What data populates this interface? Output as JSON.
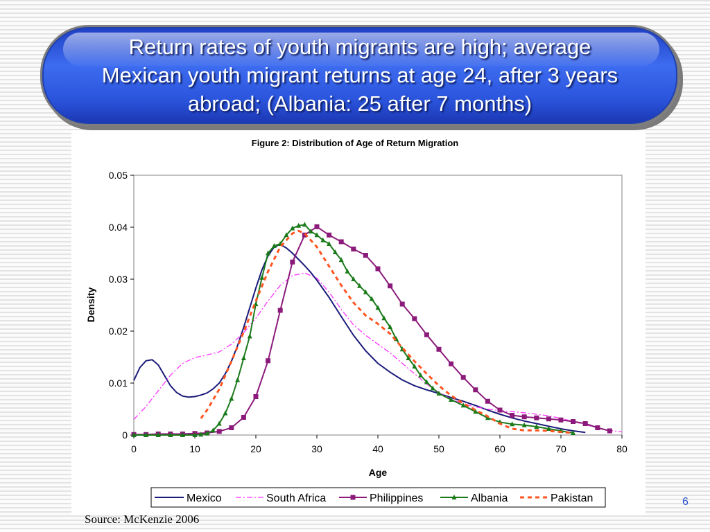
{
  "slide": {
    "title": "Return rates of youth migrants are high; average\nMexican youth migrant returns at age 24, after 3 years\nabroad; (Albania: 25 after 7 months)",
    "source": "Source: McKenzie 2006",
    "page_number": "6"
  },
  "colors": {
    "banner": "#2a54dc",
    "Mexico": "#1a1a7a",
    "South Africa": "#ff33ff",
    "Philippines": "#8b1a7a",
    "Albania": "#1a7a1a",
    "Pakistan": "#ff5522"
  },
  "chart_data": {
    "type": "line",
    "title": "Figure 2: Distribution of Age of Return Migration",
    "xlabel": "Age",
    "ylabel": "Density",
    "xlim": [
      0,
      80
    ],
    "ylim": [
      0,
      0.05
    ],
    "xticks": [
      "0",
      "10",
      "20",
      "30",
      "40",
      "50",
      "60",
      "70",
      "80"
    ],
    "yticks": [
      "0",
      "0.01",
      "0.02",
      "0.03",
      "0.04",
      "0.05"
    ],
    "grid": false,
    "legend_position": "bottom",
    "series": [
      {
        "name": "Mexico",
        "style": "solid",
        "marker": "none",
        "x": [
          0,
          1,
          2,
          3,
          4,
          5,
          6,
          7,
          8,
          9,
          10,
          11,
          12,
          13,
          14,
          15,
          16,
          17,
          18,
          19,
          20,
          21,
          22,
          23,
          24,
          25,
          26,
          27,
          28,
          29,
          30,
          32,
          34,
          36,
          38,
          40,
          42,
          44,
          46,
          48,
          50,
          52,
          54,
          56,
          58,
          60,
          62,
          64,
          66,
          68,
          70,
          72,
          74
        ],
        "y": [
          0.0105,
          0.013,
          0.0143,
          0.0145,
          0.0135,
          0.0115,
          0.0095,
          0.0082,
          0.0075,
          0.0073,
          0.0074,
          0.0077,
          0.0081,
          0.0089,
          0.01,
          0.0118,
          0.0142,
          0.0172,
          0.0207,
          0.0245,
          0.0283,
          0.0318,
          0.0345,
          0.0362,
          0.0367,
          0.036,
          0.035,
          0.0338,
          0.0326,
          0.0313,
          0.0298,
          0.0265,
          0.0228,
          0.0192,
          0.0162,
          0.0138,
          0.0121,
          0.0106,
          0.0095,
          0.0087,
          0.008,
          0.0072,
          0.0065,
          0.0057,
          0.0048,
          0.004,
          0.0033,
          0.0027,
          0.0022,
          0.0017,
          0.0012,
          0.0008,
          0.0005
        ]
      },
      {
        "name": "South Africa",
        "style": "dashdot",
        "marker": "none",
        "x": [
          0,
          2,
          4,
          6,
          8,
          10,
          12,
          14,
          16,
          18,
          20,
          22,
          24,
          26,
          28,
          30,
          32,
          34,
          36,
          38,
          40,
          42,
          44,
          46,
          48,
          50,
          52,
          54,
          56,
          58,
          60,
          62,
          64,
          66,
          68,
          70,
          72,
          74,
          76,
          78,
          80
        ],
        "y": [
          0.003,
          0.0055,
          0.0085,
          0.0115,
          0.0138,
          0.0149,
          0.0154,
          0.016,
          0.0175,
          0.0197,
          0.0225,
          0.0258,
          0.0288,
          0.0307,
          0.0312,
          0.0302,
          0.0275,
          0.0242,
          0.0212,
          0.0192,
          0.0175,
          0.0158,
          0.0138,
          0.0118,
          0.0098,
          0.0082,
          0.0069,
          0.006,
          0.0054,
          0.005,
          0.0047,
          0.0045,
          0.0043,
          0.004,
          0.0037,
          0.0032,
          0.0026,
          0.002,
          0.0014,
          0.0009,
          0.0006
        ]
      },
      {
        "name": "Philippines",
        "style": "solid",
        "marker": "square",
        "x": [
          0,
          2,
          4,
          6,
          8,
          10,
          12,
          14,
          16,
          18,
          20,
          22,
          24,
          26,
          28,
          30,
          32,
          34,
          36,
          38,
          40,
          42,
          44,
          46,
          48,
          50,
          52,
          54,
          56,
          58,
          60,
          62,
          64,
          66,
          68,
          70,
          72,
          74,
          76,
          78
        ],
        "y": [
          0.0001,
          0.0001,
          0.0002,
          0.0002,
          0.0002,
          0.0003,
          0.0004,
          0.0007,
          0.0014,
          0.0034,
          0.0074,
          0.0143,
          0.024,
          0.0333,
          0.0385,
          0.0401,
          0.0385,
          0.0372,
          0.0358,
          0.0346,
          0.032,
          0.0287,
          0.0252,
          0.0224,
          0.0193,
          0.0165,
          0.0137,
          0.0111,
          0.0087,
          0.0065,
          0.0048,
          0.0038,
          0.0035,
          0.0033,
          0.0031,
          0.0029,
          0.0026,
          0.0022,
          0.0014,
          0.0008
        ]
      },
      {
        "name": "Albania",
        "style": "solid",
        "marker": "triangle",
        "x": [
          0,
          2,
          4,
          6,
          8,
          10,
          11,
          12,
          13,
          14,
          15,
          16,
          17,
          18,
          19,
          20,
          21,
          22,
          23,
          24,
          25,
          26,
          27,
          28,
          29,
          30,
          31,
          32,
          33,
          34,
          35,
          36,
          37,
          38,
          39,
          40,
          41,
          42,
          43,
          44,
          45,
          46,
          47,
          48,
          49,
          50,
          52,
          54,
          56,
          58,
          60,
          62,
          64,
          66,
          68,
          70,
          72
        ],
        "y": [
          0,
          0,
          0,
          0,
          0,
          0,
          0.0001,
          0.0003,
          0.0009,
          0.0022,
          0.0042,
          0.007,
          0.0106,
          0.0148,
          0.019,
          0.0252,
          0.0303,
          0.035,
          0.0364,
          0.0368,
          0.0385,
          0.0398,
          0.0403,
          0.0405,
          0.0392,
          0.0385,
          0.0375,
          0.0368,
          0.0352,
          0.0337,
          0.0315,
          0.03,
          0.0287,
          0.0275,
          0.0262,
          0.0245,
          0.0225,
          0.0208,
          0.0185,
          0.0165,
          0.0148,
          0.0132,
          0.0115,
          0.0102,
          0.009,
          0.008,
          0.0068,
          0.0057,
          0.0045,
          0.0033,
          0.0025,
          0.0021,
          0.0019,
          0.0016,
          0.0012,
          0.0008,
          0.0004
        ]
      },
      {
        "name": "Pakistan",
        "style": "dashed",
        "marker": "none",
        "x": [
          11,
          12,
          14,
          16,
          18,
          20,
          22,
          24,
          26,
          27,
          28,
          30,
          32,
          34,
          36,
          38,
          40,
          42,
          44,
          46,
          48,
          50,
          52,
          54,
          56,
          58,
          60,
          62,
          64,
          66,
          68,
          70,
          72
        ],
        "y": [
          0.0032,
          0.0048,
          0.0088,
          0.0142,
          0.0198,
          0.0258,
          0.0315,
          0.0362,
          0.0388,
          0.0393,
          0.0388,
          0.0362,
          0.0325,
          0.0288,
          0.0255,
          0.023,
          0.0214,
          0.0195,
          0.0168,
          0.0142,
          0.0118,
          0.0095,
          0.0076,
          0.0061,
          0.0048,
          0.0036,
          0.0022,
          0.0012,
          0.0009,
          0.0009,
          0.0008,
          0.0006,
          0.0004
        ]
      }
    ]
  }
}
